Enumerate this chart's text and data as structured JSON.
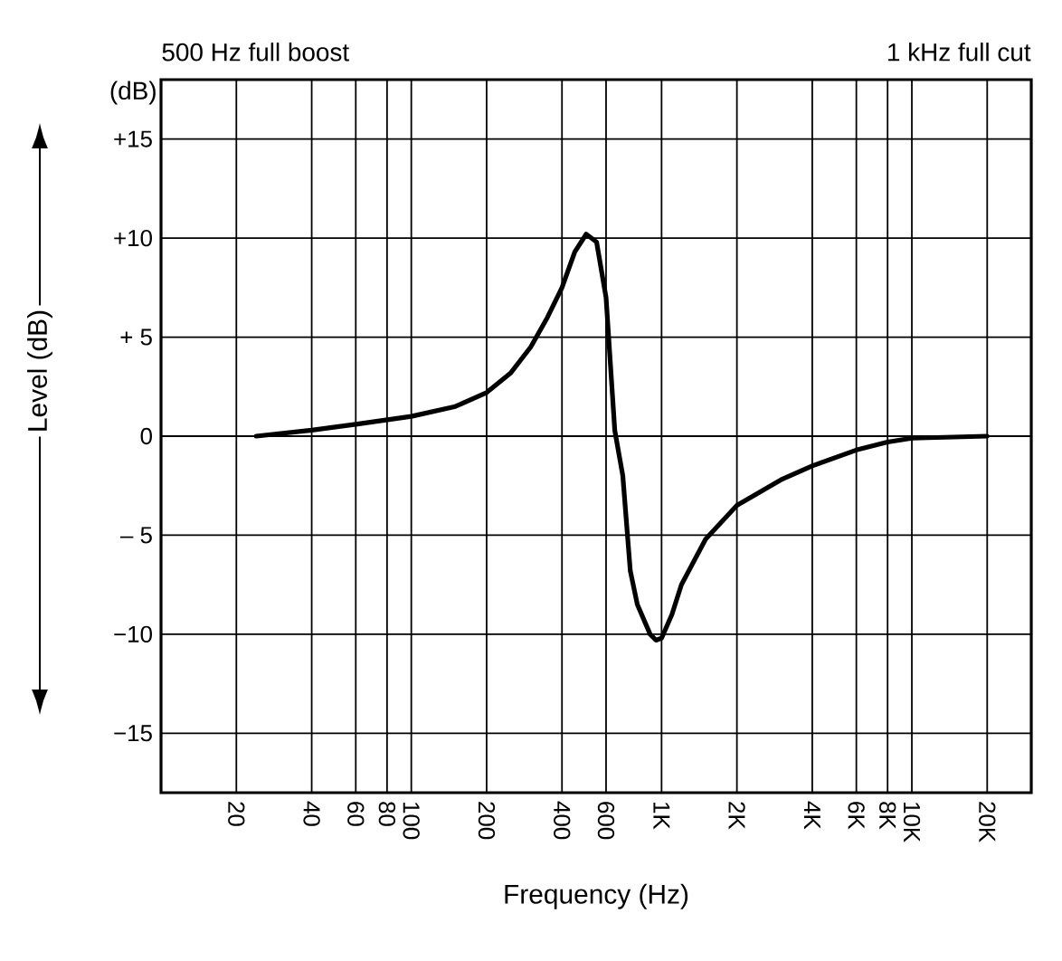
{
  "chart_data": {
    "type": "line",
    "annotations": [
      "(dB)",
      "500 Hz full boost",
      "1 kHz full cut"
    ],
    "xlabel": "Frequency (Hz)",
    "ylabel": "Level (dB)",
    "x": [
      24,
      40,
      60,
      100,
      150,
      200,
      250,
      300,
      350,
      400,
      450,
      500,
      550,
      600,
      650,
      700,
      750,
      800,
      900,
      950,
      1000,
      1100,
      1200,
      1500,
      2000,
      3000,
      4000,
      6000,
      8000,
      10000,
      20000
    ],
    "series": [
      {
        "color": "#000000",
        "values": [
          0,
          0.3,
          0.6,
          1.0,
          1.5,
          2.2,
          3.2,
          4.5,
          6,
          7.5,
          9.3,
          10.2,
          9.8,
          7,
          0.3,
          -2,
          -6.8,
          -8.5,
          -10,
          -10.3,
          -10.2,
          -9,
          -7.5,
          -5.2,
          -3.5,
          -2.2,
          -1.5,
          -0.7,
          -0.3,
          -0.1,
          0
        ]
      }
    ],
    "xlim": [
      10,
      30000
    ],
    "ylim": [
      -18,
      18
    ],
    "xticks": [
      20,
      40,
      60,
      80,
      100,
      200,
      400,
      600,
      {
        "value": 1000,
        "label": "1K"
      },
      {
        "value": 2000,
        "label": "2K"
      },
      {
        "value": 4000,
        "label": "4K"
      },
      {
        "value": 6000,
        "label": "6K"
      },
      {
        "value": 8000,
        "label": "8K"
      },
      {
        "value": 10000,
        "label": "10K"
      },
      {
        "value": 20000,
        "label": "20K"
      }
    ],
    "yticks": [
      {
        "value": 15,
        "label": "+15"
      },
      {
        "value": 10,
        "label": "+10"
      },
      {
        "value": 5,
        "label": "+ 5"
      },
      0,
      {
        "value": -5,
        "label": "– 5"
      },
      {
        "value": -10,
        "label": "−10"
      },
      {
        "value": -15,
        "label": "−15"
      }
    ],
    "log": "x",
    "grid": true,
    "line_style": "solid"
  }
}
